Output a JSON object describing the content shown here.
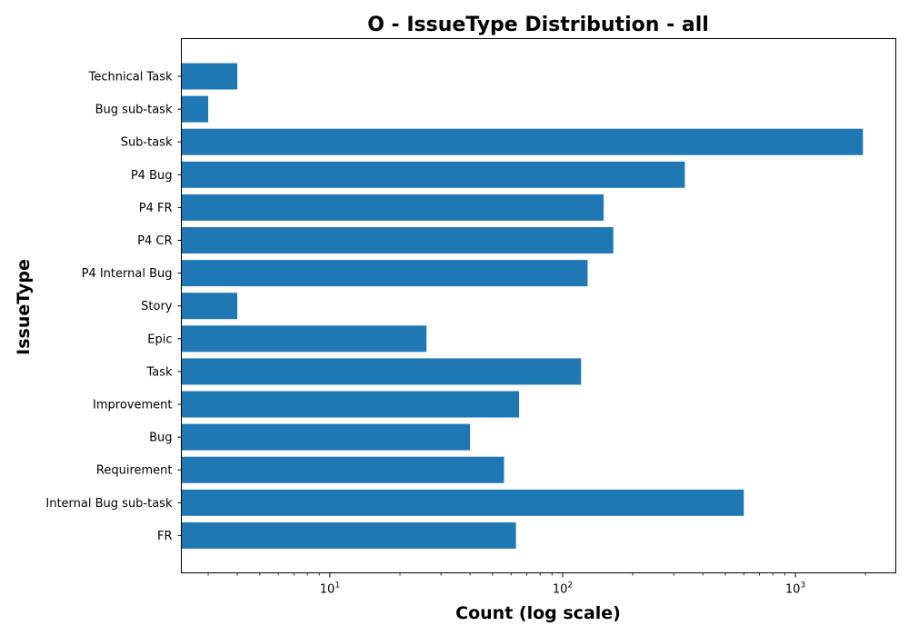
{
  "chart_data": {
    "type": "bar",
    "orientation": "horizontal",
    "title": "O - IssueType Distribution - all",
    "xlabel": "Count (log scale)",
    "ylabel": "IssueType",
    "x_scale": "log",
    "xlim": [
      2.3,
      2700
    ],
    "x_ticks": [
      {
        "base": "10",
        "exp": "1",
        "value": 10
      },
      {
        "base": "10",
        "exp": "2",
        "value": 100
      },
      {
        "base": "10",
        "exp": "3",
        "value": 1000
      }
    ],
    "categories": [
      "Technical Task",
      "Bug sub-task",
      "Sub-task",
      "P4 Bug",
      "P4 FR",
      "P4 CR",
      "P4 Internal Bug",
      "Story",
      "Epic",
      "Task",
      "Improvement",
      "Bug",
      "Requirement",
      "Internal Bug sub-task",
      "FR"
    ],
    "values": [
      4,
      3,
      1950,
      335,
      150,
      165,
      128,
      4,
      26,
      120,
      65,
      40,
      56,
      600,
      63
    ],
    "bar_color": "#1f77b4",
    "grid": false,
    "legend": "none"
  }
}
